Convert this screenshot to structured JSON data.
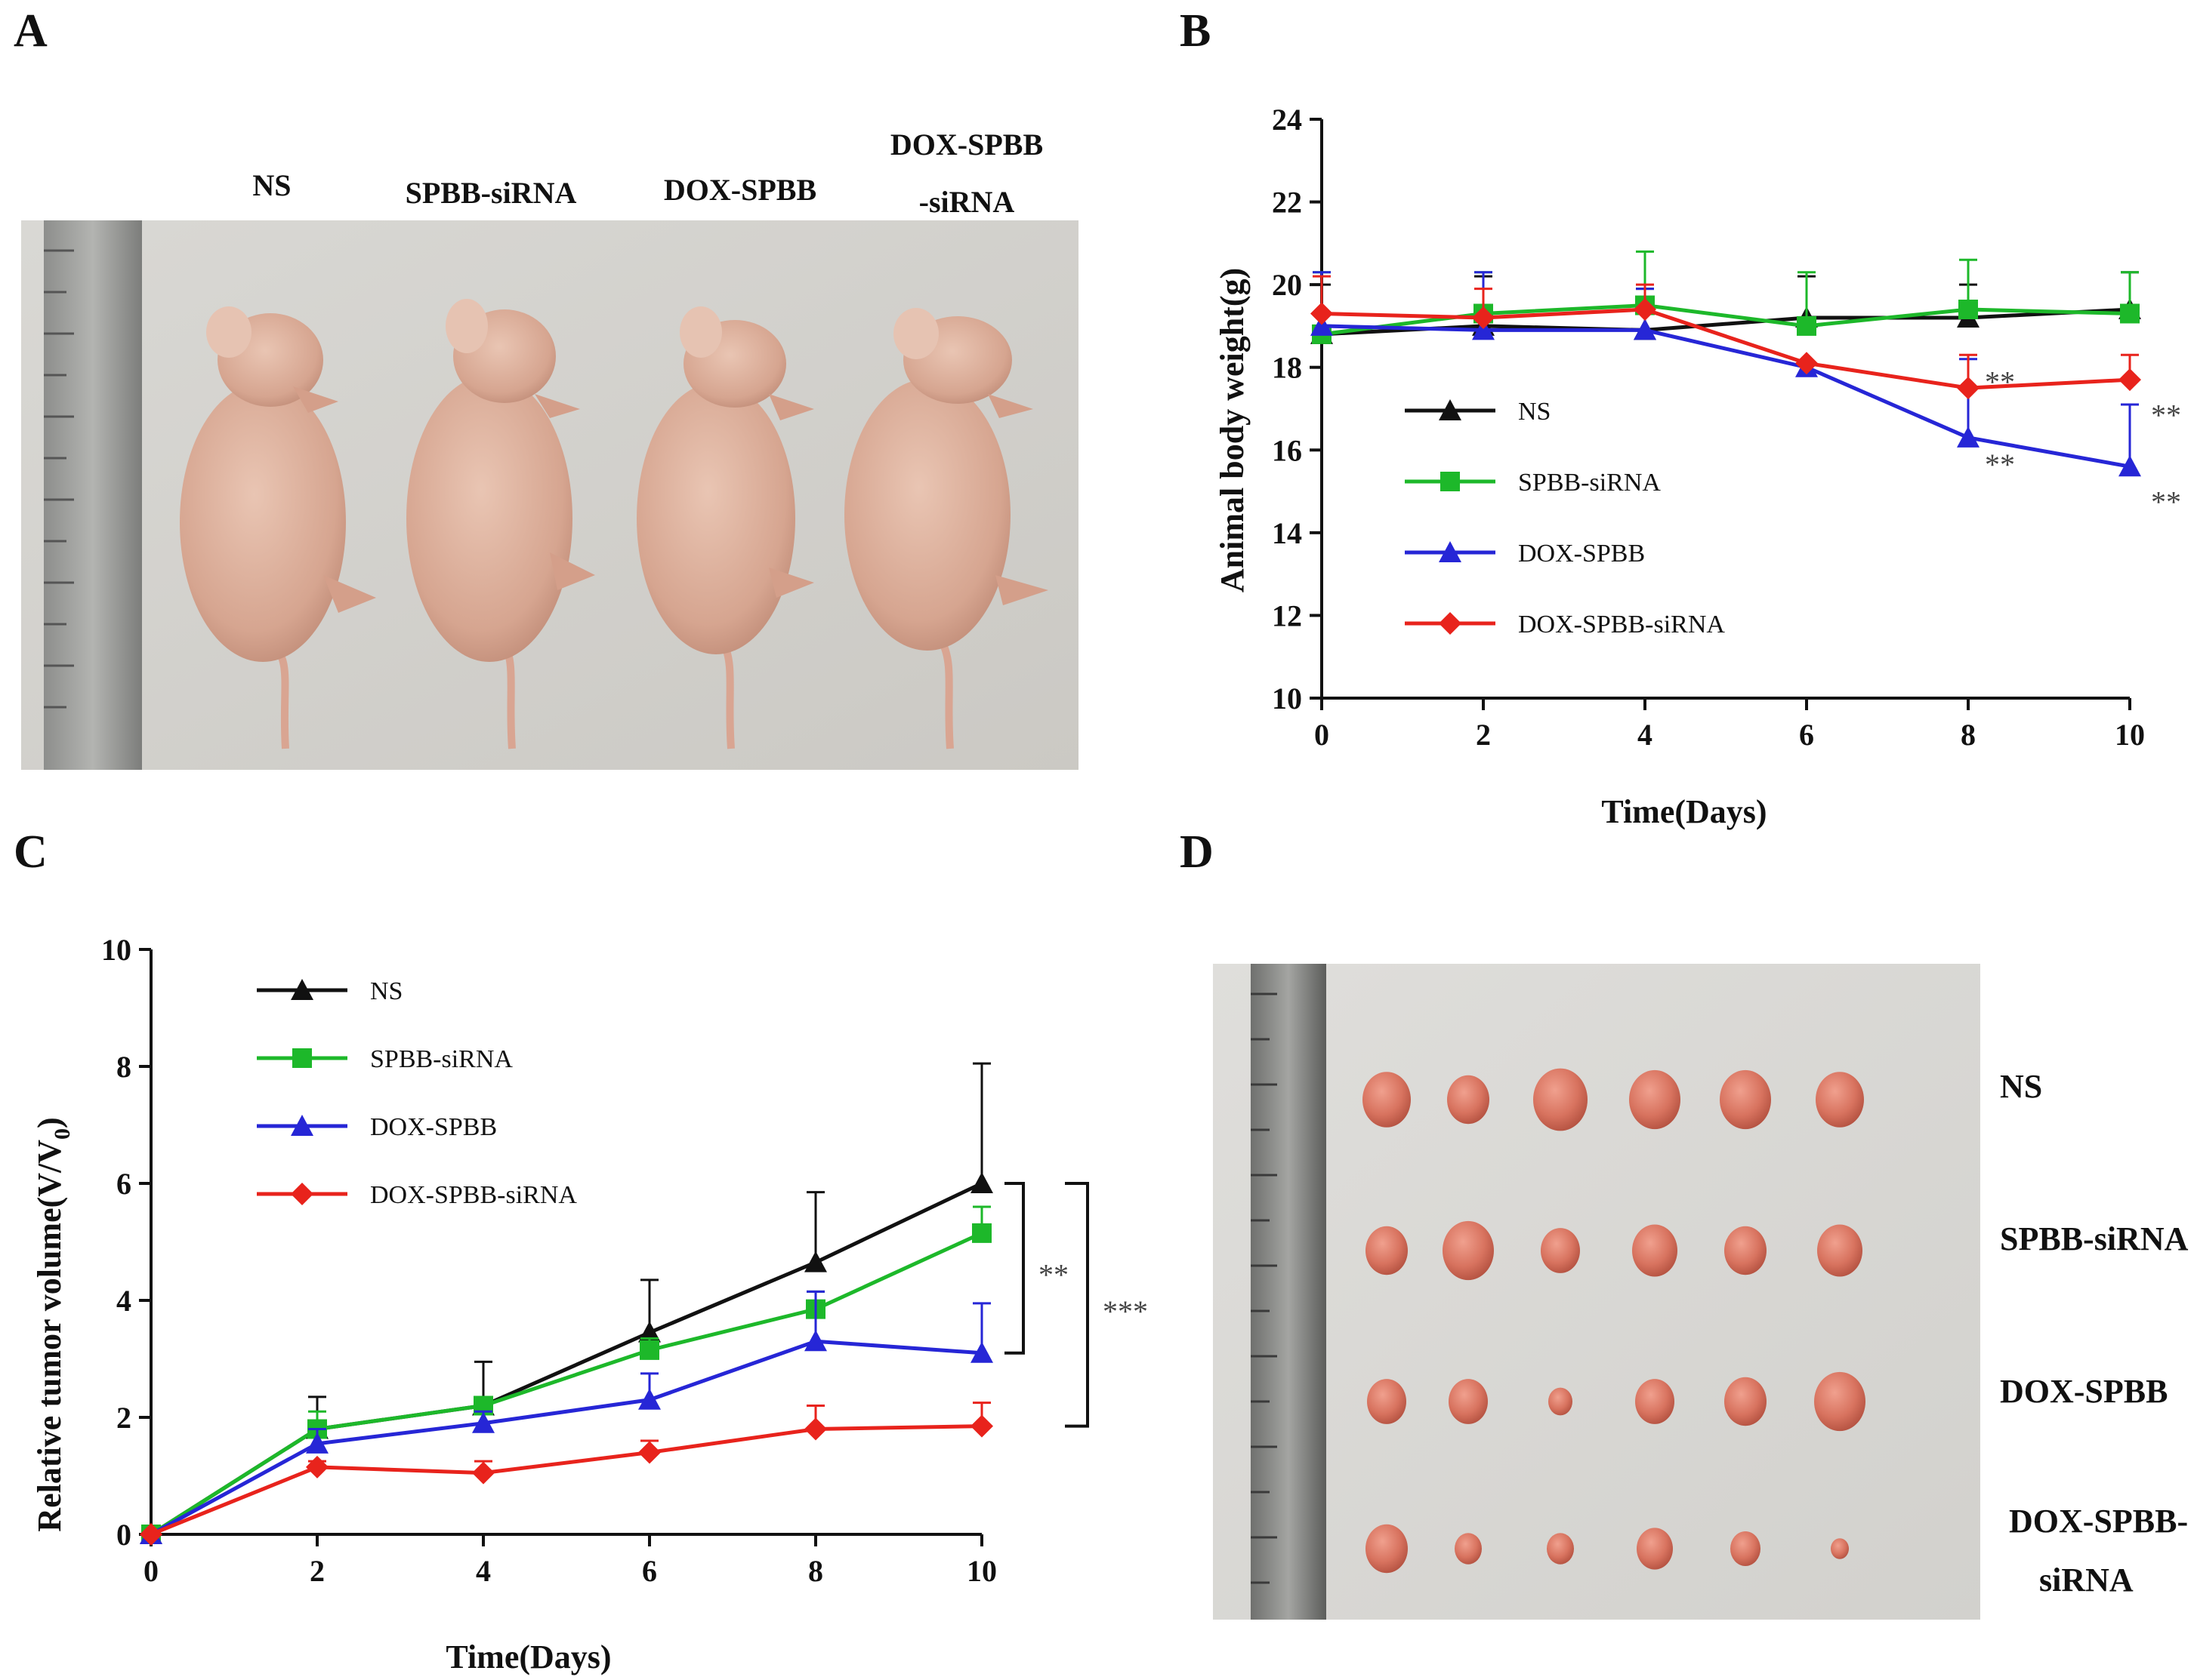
{
  "panels": {
    "a": {
      "letter": "A",
      "labels": [
        "NS",
        "SPBB-siRNA",
        "DOX-SPBB",
        "DOX-SPBB",
        "-siRNA"
      ]
    },
    "b": {
      "letter": "B"
    },
    "c": {
      "letter": "C"
    },
    "d": {
      "letter": "D",
      "row_labels": [
        "NS",
        "SPBB-siRNA",
        "DOX-SPBB",
        "DOX-SPBB-",
        "siRNA"
      ]
    }
  },
  "colors": {
    "NS": "#111111",
    "SPBB-siRNA": "#1db82a",
    "DOX-SPBB": "#2626d6",
    "DOX-SPBB-siRNA": "#e8231c"
  },
  "chart_data": [
    {
      "id": "B",
      "type": "line",
      "ylabel": "Animal body weight(g)",
      "xlabel": "Time(Days)",
      "xlim": [
        0,
        10
      ],
      "ylim": [
        10,
        24
      ],
      "x": [
        0,
        2,
        4,
        6,
        8,
        10
      ],
      "x_ticks": [
        "0",
        "2",
        "4",
        "6",
        "8",
        "10"
      ],
      "y_ticks": [
        "10",
        "12",
        "14",
        "16",
        "18",
        "20",
        "22",
        "24"
      ],
      "legend_position": "middle-left",
      "series": [
        {
          "name": "NS",
          "marker": "triangle",
          "values": [
            18.8,
            19.0,
            18.9,
            19.2,
            19.2,
            19.4
          ],
          "errors": [
            1.2,
            1.2,
            1.0,
            1.0,
            0.8,
            0.9
          ]
        },
        {
          "name": "SPBB-siRNA",
          "marker": "square",
          "values": [
            18.8,
            19.3,
            19.5,
            19.0,
            19.4,
            19.3
          ],
          "errors": [
            1.5,
            1.0,
            1.3,
            1.3,
            1.2,
            1.0
          ]
        },
        {
          "name": "DOX-SPBB",
          "marker": "triangle",
          "values": [
            19.0,
            18.9,
            18.9,
            18.0,
            16.3,
            15.6
          ],
          "errors": [
            1.3,
            1.4,
            1.0,
            0.0,
            1.9,
            1.5
          ]
        },
        {
          "name": "DOX-SPBB-siRNA",
          "marker": "diamond",
          "values": [
            19.3,
            19.2,
            19.4,
            18.1,
            17.5,
            17.7
          ],
          "errors": [
            0.9,
            0.7,
            0.6,
            0.0,
            0.8,
            0.6
          ]
        }
      ],
      "annotations": [
        {
          "text": "**",
          "x": 8,
          "y": 17.4
        },
        {
          "text": "**",
          "x": 8,
          "y": 15.4
        },
        {
          "text": "**",
          "x": 10,
          "y": 16.6
        },
        {
          "text": "**",
          "x": 10,
          "y": 14.5
        }
      ]
    },
    {
      "id": "C",
      "type": "line",
      "ylabel": "Relative tumor volume(V/V0)",
      "xlabel": "Time(Days)",
      "xlim": [
        0,
        10
      ],
      "ylim": [
        0,
        10
      ],
      "x": [
        0,
        2,
        4,
        6,
        8,
        10
      ],
      "x_ticks": [
        "0",
        "2",
        "4",
        "6",
        "8",
        "10"
      ],
      "y_ticks": [
        "0",
        "2",
        "4",
        "6",
        "8",
        "10"
      ],
      "legend_position": "top-left",
      "series": [
        {
          "name": "NS",
          "marker": "triangle",
          "values": [
            0,
            1.8,
            2.2,
            3.45,
            4.65,
            6.0
          ],
          "errors": [
            0,
            0.55,
            0.75,
            0.9,
            1.2,
            2.05
          ]
        },
        {
          "name": "SPBB-siRNA",
          "marker": "square",
          "values": [
            0,
            1.8,
            2.2,
            3.15,
            3.85,
            5.15
          ],
          "errors": [
            0,
            0.3,
            0.1,
            0.2,
            0.3,
            0.45
          ]
        },
        {
          "name": "DOX-SPBB",
          "marker": "triangle",
          "values": [
            0,
            1.55,
            1.9,
            2.3,
            3.3,
            3.1
          ],
          "errors": [
            0,
            0.25,
            0.2,
            0.45,
            0.85,
            0.85
          ]
        },
        {
          "name": "DOX-SPBB-siRNA",
          "marker": "diamond",
          "values": [
            0,
            1.15,
            1.05,
            1.4,
            1.8,
            1.85
          ],
          "errors": [
            0,
            0.1,
            0.2,
            0.2,
            0.4,
            0.4
          ]
        }
      ],
      "annotations": [
        {
          "text": "**",
          "from": 6.0,
          "to": 3.1
        },
        {
          "text": "***",
          "from": 6.0,
          "to": 1.85
        }
      ]
    }
  ]
}
